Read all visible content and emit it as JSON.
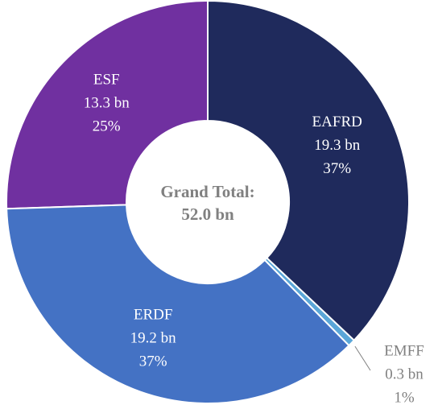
{
  "chart_data": {
    "type": "donut",
    "categories": [
      "EAFRD",
      "EMFF",
      "ERDF",
      "ESF"
    ],
    "values": [
      19.3,
      0.3,
      19.2,
      13.3
    ],
    "value_labels": [
      "19.3 bn",
      "0.3 bn",
      "19.2 bn",
      "13.3 bn"
    ],
    "percent_labels": [
      "37%",
      "1%",
      "37%",
      "25%"
    ],
    "colors": [
      "#1f2a5c",
      "#5aa6d8",
      "#4472c4",
      "#7030a0"
    ],
    "total_label": "Grand Total:",
    "total": "52.0 bn"
  }
}
